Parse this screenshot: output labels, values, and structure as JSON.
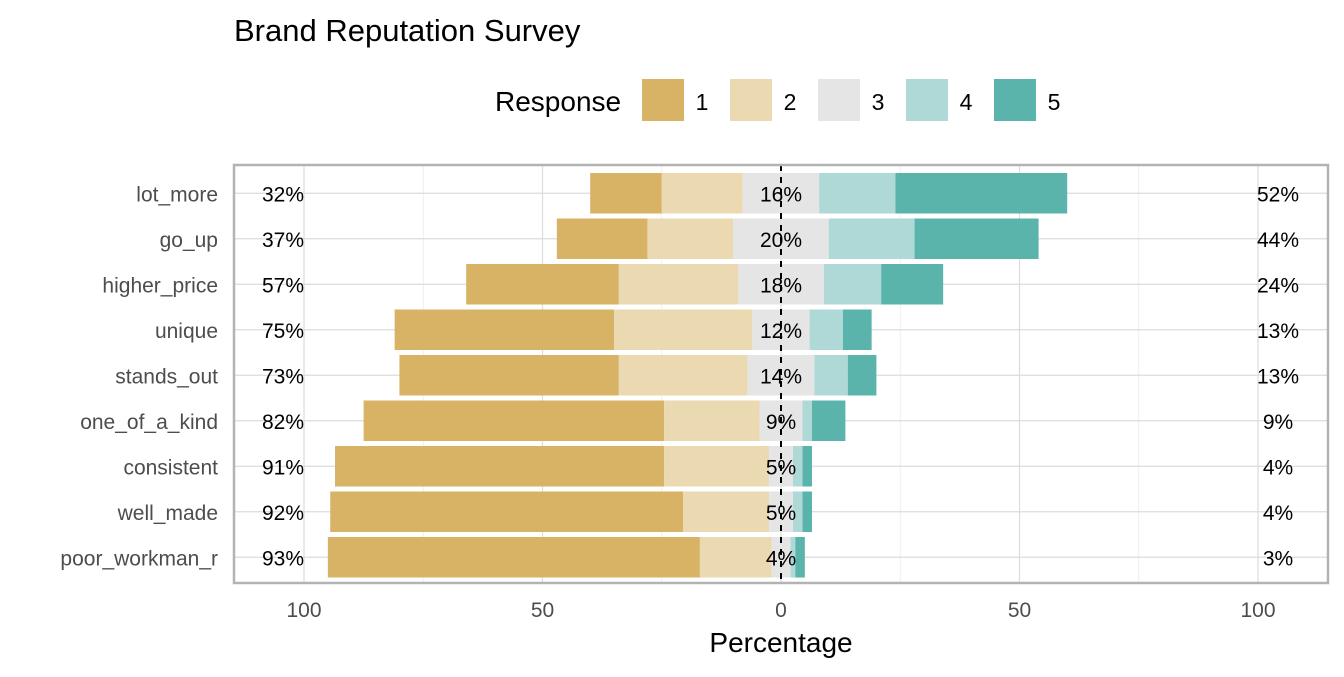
{
  "chart_data": {
    "type": "bar",
    "title": "Brand Reputation Survey",
    "xlabel": "Percentage",
    "ylabel": "",
    "legend": {
      "title": "Response",
      "position": "top",
      "entries": [
        "1",
        "2",
        "3",
        "4",
        "5"
      ]
    },
    "colors": [
      "#D8B365",
      "#EBD9B2",
      "#E5E5E5",
      "#AFD9D6",
      "#5AB4AC"
    ],
    "xlim": [
      -100,
      100
    ],
    "x_ticks": [
      -100,
      -50,
      0,
      50,
      100
    ],
    "x_tick_labels": [
      "100",
      "50",
      "0",
      "50",
      "100"
    ],
    "grid": true,
    "categories": [
      "lot_more",
      "go_up",
      "higher_price",
      "unique",
      "stands_out",
      "one_of_a_kind",
      "consistent",
      "well_made",
      "poor_workman_r"
    ],
    "series": [
      {
        "name": "1",
        "values": [
          15,
          19,
          32,
          46,
          46,
          63,
          69,
          74,
          78
        ]
      },
      {
        "name": "2",
        "values": [
          17,
          18,
          25,
          29,
          27,
          20,
          22,
          18,
          15
        ]
      },
      {
        "name": "3",
        "values": [
          16,
          20,
          18,
          12,
          14,
          9,
          5,
          5,
          4
        ]
      },
      {
        "name": "4",
        "values": [
          16,
          18,
          12,
          7,
          7,
          2,
          2,
          2,
          1
        ]
      },
      {
        "name": "5",
        "values": [
          36,
          26,
          13,
          6,
          6,
          7,
          2,
          2,
          2
        ]
      }
    ],
    "left_labels": [
      "32%",
      "37%",
      "57%",
      "75%",
      "73%",
      "82%",
      "91%",
      "92%",
      "93%"
    ],
    "center_labels": [
      "16%",
      "20%",
      "18%",
      "12%",
      "14%",
      "9%",
      "5%",
      "5%",
      "4%"
    ],
    "right_labels": [
      "52%",
      "44%",
      "24%",
      "13%",
      "13%",
      "9%",
      "4%",
      "4%",
      "3%"
    ]
  }
}
